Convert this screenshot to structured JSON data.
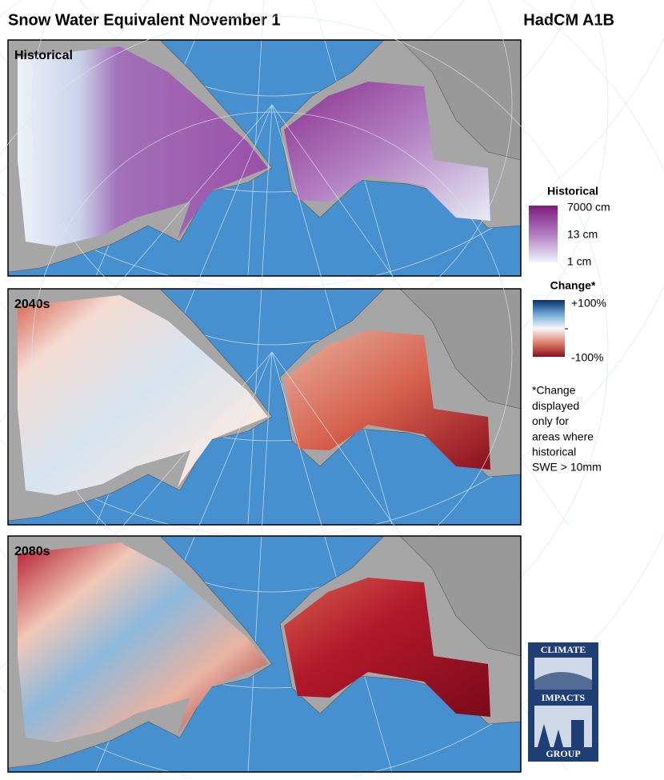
{
  "header": {
    "title": "Snow Water Equivalent November 1",
    "model": "HadCM A1B"
  },
  "panels": [
    {
      "label": "Historical"
    },
    {
      "label": "2040s"
    },
    {
      "label": "2080s"
    }
  ],
  "legend": {
    "historical": {
      "title": "Historical",
      "labels": [
        "7000 cm",
        "13 cm",
        "1 cm"
      ]
    },
    "change": {
      "title": "Change*",
      "labels": [
        "+100%",
        "-100%"
      ]
    },
    "note": [
      "*Change",
      "displayed",
      "only for",
      "areas where",
      "historical",
      "SWE > 10mm"
    ]
  },
  "logo": {
    "lines": [
      "CLIMATE",
      "IMPACTS",
      "GROUP"
    ]
  }
}
